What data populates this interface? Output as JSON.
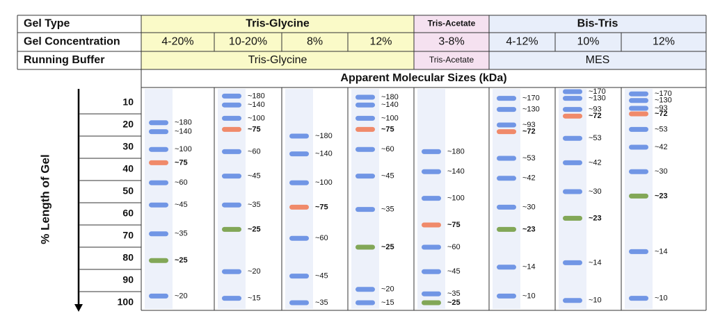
{
  "header": {
    "rows": [
      {
        "label": "Gel Type",
        "cells": [
          "Tris-Glycine",
          "Tris-Acetate",
          "Bis-Tris"
        ]
      },
      {
        "label": "Gel Concentration",
        "cells": [
          "4-20%",
          "10-20%",
          "8%",
          "12%",
          "3-8%",
          "4-12%",
          "10%",
          "12%"
        ]
      },
      {
        "label": "Running Buffer",
        "cells": [
          "Tris-Glycine",
          "Tris-Acetate",
          "MES"
        ]
      }
    ],
    "subtitle": "Apparent Molecular Sizes (kDa)"
  },
  "gel": {
    "axis_title": "% Length of Gel",
    "ylim": [
      0,
      100
    ],
    "yticks": [
      10,
      20,
      30,
      40,
      50,
      60,
      70,
      80,
      90,
      100
    ],
    "band_color": "#5b86e0",
    "lanes": [
      {
        "bands": [
          {
            "label": "~180",
            "position": 19
          },
          {
            "label": "~140",
            "position": 23
          },
          {
            "label": "~100",
            "position": 31
          },
          {
            "label": "~75",
            "position": 37,
            "color": "#f07850"
          },
          {
            "label": "~60",
            "position": 46
          },
          {
            "label": "~45",
            "position": 56
          },
          {
            "label": "~35",
            "position": 69
          },
          {
            "label": "~25",
            "position": 81,
            "color": "#6f9a3a"
          },
          {
            "label": "~20",
            "position": 97
          }
        ]
      },
      {
        "bands": [
          {
            "label": "~180",
            "position": 7
          },
          {
            "label": "~140",
            "position": 11
          },
          {
            "label": "~100",
            "position": 17
          },
          {
            "label": "~75",
            "position": 22,
            "color": "#f07850"
          },
          {
            "label": "~60",
            "position": 32
          },
          {
            "label": "~45",
            "position": 43
          },
          {
            "label": "~35",
            "position": 56
          },
          {
            "label": "~25",
            "position": 67,
            "color": "#6f9a3a"
          },
          {
            "label": "~20",
            "position": 86
          },
          {
            "label": "~15",
            "position": 98
          }
        ]
      },
      {
        "bands": [
          {
            "label": "~180",
            "position": 25
          },
          {
            "label": "~140",
            "position": 33
          },
          {
            "label": "~100",
            "position": 46
          },
          {
            "label": "~75",
            "position": 57,
            "color": "#f07850"
          },
          {
            "label": "~60",
            "position": 71
          },
          {
            "label": "~45",
            "position": 88
          },
          {
            "label": "~35",
            "position": 100
          }
        ]
      },
      {
        "bands": [
          {
            "label": "~180",
            "position": 7.5
          },
          {
            "label": "~140",
            "position": 11
          },
          {
            "label": "~100",
            "position": 17
          },
          {
            "label": "~75",
            "position": 22,
            "color": "#f07850"
          },
          {
            "label": "~60",
            "position": 31
          },
          {
            "label": "~45",
            "position": 43
          },
          {
            "label": "~35",
            "position": 58
          },
          {
            "label": "~25",
            "position": 75,
            "color": "#6f9a3a"
          },
          {
            "label": "~20",
            "position": 94
          },
          {
            "label": "~15",
            "position": 100
          }
        ]
      },
      {
        "bands": [
          {
            "label": "~180",
            "position": 32
          },
          {
            "label": "~140",
            "position": 41
          },
          {
            "label": "~100",
            "position": 53
          },
          {
            "label": "~75",
            "position": 65,
            "color": "#f07850"
          },
          {
            "label": "~60",
            "position": 75
          },
          {
            "label": "~45",
            "position": 86
          },
          {
            "label": "~35",
            "position": 96
          },
          {
            "label": "~25",
            "position": 100,
            "color": "#6f9a3a"
          }
        ]
      },
      {
        "bands": [
          {
            "label": "~170",
            "position": 8
          },
          {
            "label": "~130",
            "position": 13
          },
          {
            "label": "~93",
            "position": 20
          },
          {
            "label": "~72",
            "position": 23,
            "color": "#f07850"
          },
          {
            "label": "~53",
            "position": 35
          },
          {
            "label": "~42",
            "position": 44
          },
          {
            "label": "~30",
            "position": 57
          },
          {
            "label": "~23",
            "position": 67,
            "color": "#6f9a3a"
          },
          {
            "label": "~14",
            "position": 84
          },
          {
            "label": "~10",
            "position": 97
          }
        ]
      },
      {
        "bands": [
          {
            "label": "~170",
            "position": 5
          },
          {
            "label": "~130",
            "position": 8
          },
          {
            "label": "~93",
            "position": 13
          },
          {
            "label": "~72",
            "position": 16,
            "color": "#f07850"
          },
          {
            "label": "~53",
            "position": 26
          },
          {
            "label": "~42",
            "position": 37
          },
          {
            "label": "~30",
            "position": 50
          },
          {
            "label": "~23",
            "position": 62,
            "color": "#6f9a3a"
          },
          {
            "label": "~14",
            "position": 82
          },
          {
            "label": "~10",
            "position": 99
          }
        ]
      },
      {
        "bands": [
          {
            "label": "~170",
            "position": 6
          },
          {
            "label": "~130",
            "position": 9
          },
          {
            "label": "~93",
            "position": 12.5
          },
          {
            "label": "~72",
            "position": 15,
            "color": "#f07850"
          },
          {
            "label": "~53",
            "position": 22
          },
          {
            "label": "~42",
            "position": 30
          },
          {
            "label": "~30",
            "position": 41
          },
          {
            "label": "~23",
            "position": 52,
            "color": "#6f9a3a"
          },
          {
            "label": "~14",
            "position": 77
          },
          {
            "label": "~10",
            "position": 98
          }
        ]
      }
    ]
  }
}
